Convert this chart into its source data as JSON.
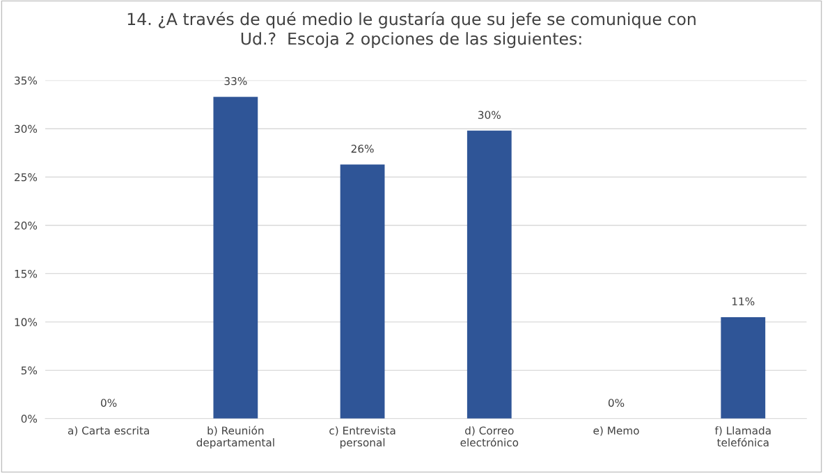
{
  "chart_data": {
    "type": "bar",
    "title": "14. ¿A través de qué medio le gustaría que su jefe se comunique con\nUd.?  Escoja 2 opciones de las siguientes:",
    "categories": [
      "a) Carta escrita",
      "b) Reunión\ndepartamental",
      "c) Entrevista\npersonal",
      "d) Correo\nelectrónico",
      "e) Memo",
      "f) Llamada\ntelefónica"
    ],
    "values": [
      0,
      33.3,
      26.3,
      29.8,
      0,
      10.5
    ],
    "value_labels": [
      "0%",
      "33%",
      "26%",
      "30%",
      "0%",
      "11%"
    ],
    "color": "#2f5597",
    "ylim": [
      0,
      35
    ],
    "yticks": [
      {
        "value": 0,
        "label": "0%"
      },
      {
        "value": 5,
        "label": "5%"
      },
      {
        "value": 10,
        "label": "10%"
      },
      {
        "value": 15,
        "label": "15%"
      },
      {
        "value": 20,
        "label": "20%"
      },
      {
        "value": 25,
        "label": "25%"
      },
      {
        "value": 30,
        "label": "30%"
      },
      {
        "value": 35,
        "label": "35%"
      }
    ],
    "grid": "y"
  }
}
